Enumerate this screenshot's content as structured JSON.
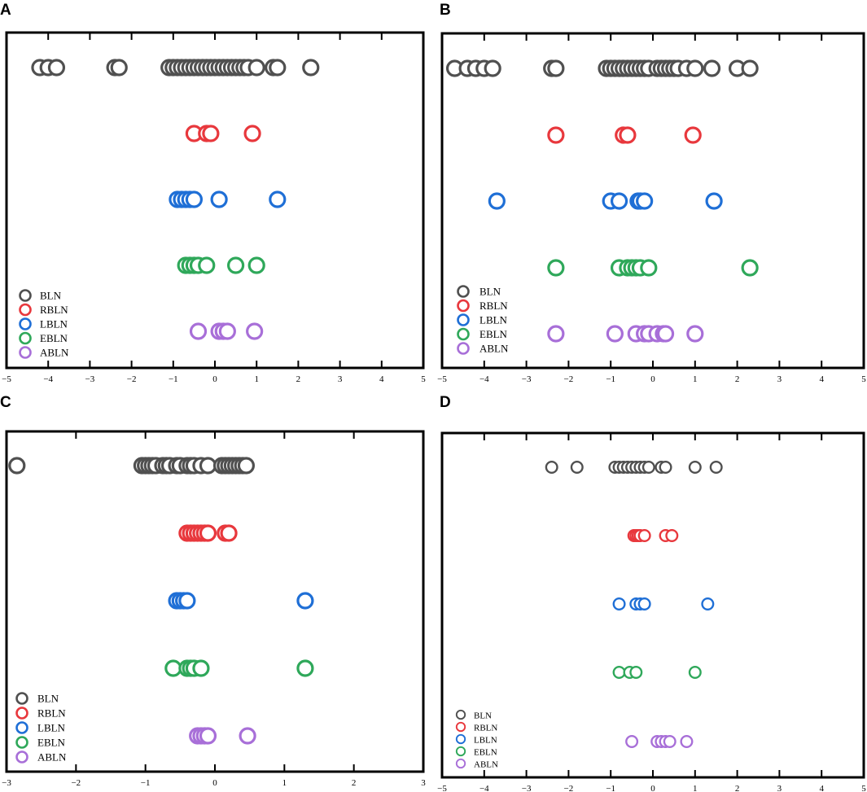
{
  "colors": {
    "BLN": "#505050",
    "RBLN": "#e8383d",
    "LBLN": "#1f6fd6",
    "EBLN": "#2fa85a",
    "ABLN": "#a86fd8",
    "frame": "#000000"
  },
  "chart_data": [
    {
      "panel_label": "A",
      "type": "scatter",
      "xlim": [
        -5,
        5
      ],
      "xticks": [
        "−5",
        "−4",
        "−3",
        "−2",
        "−1",
        "0",
        "1",
        "2",
        "3",
        "4",
        "5"
      ],
      "grid": false,
      "legend_position": "bottom-left",
      "series": [
        {
          "name": "BLN",
          "x": [
            -4.2,
            -4.0,
            -3.8,
            -2.4,
            -2.3,
            -1.1,
            -1.0,
            -0.9,
            -0.8,
            -0.7,
            -0.6,
            -0.5,
            -0.4,
            -0.3,
            -0.2,
            -0.1,
            0.0,
            0.1,
            0.2,
            0.3,
            0.4,
            0.5,
            0.6,
            0.7,
            0.8,
            1.0,
            1.4,
            1.5,
            2.3
          ]
        },
        {
          "name": "RBLN",
          "x": [
            -0.5,
            -0.2,
            -0.1,
            0.9
          ]
        },
        {
          "name": "LBLN",
          "x": [
            -0.9,
            -0.8,
            -0.7,
            -0.6,
            -0.5,
            0.1,
            1.5
          ]
        },
        {
          "name": "EBLN",
          "x": [
            -0.7,
            -0.6,
            -0.5,
            -0.4,
            -0.2,
            0.5,
            1.0
          ]
        },
        {
          "name": "ABLN",
          "x": [
            -0.4,
            0.1,
            0.2,
            0.3,
            0.95
          ]
        }
      ]
    },
    {
      "panel_label": "B",
      "type": "scatter",
      "xlim": [
        -5,
        5
      ],
      "xticks": [
        "−5",
        "−4",
        "−3",
        "−2",
        "−1",
        "0",
        "1",
        "2",
        "3",
        "4",
        "5"
      ],
      "grid": false,
      "legend_position": "bottom-left",
      "series": [
        {
          "name": "BLN",
          "x": [
            -4.7,
            -4.4,
            -4.2,
            -4.0,
            -3.8,
            -2.4,
            -2.3,
            -1.1,
            -1.0,
            -0.9,
            -0.8,
            -0.7,
            -0.6,
            -0.5,
            -0.4,
            -0.3,
            -0.2,
            -0.1,
            0.1,
            0.2,
            0.3,
            0.4,
            0.5,
            0.6,
            0.8,
            1.0,
            1.4,
            2.0,
            2.3
          ]
        },
        {
          "name": "RBLN",
          "x": [
            -2.3,
            -0.7,
            -0.6,
            0.95
          ]
        },
        {
          "name": "LBLN",
          "x": [
            -3.7,
            -1.0,
            -0.8,
            -0.35,
            -0.3,
            -0.2,
            1.45
          ]
        },
        {
          "name": "EBLN",
          "x": [
            -2.3,
            -0.8,
            -0.6,
            -0.5,
            -0.4,
            -0.3,
            -0.1,
            2.3
          ]
        },
        {
          "name": "ABLN",
          "x": [
            -2.3,
            -0.9,
            -0.4,
            -0.2,
            -0.1,
            0.1,
            0.25,
            0.3,
            1.0
          ]
        }
      ]
    },
    {
      "panel_label": "C",
      "type": "scatter",
      "xlim": [
        -3,
        3
      ],
      "xticks": [
        "−3",
        "−2",
        "−1",
        "0",
        "1",
        "2",
        "3"
      ],
      "grid": false,
      "legend_position": "bottom-left",
      "series": [
        {
          "name": "BLN",
          "x": [
            -2.85,
            -1.05,
            -1.0,
            -0.95,
            -0.9,
            -0.85,
            -0.75,
            -0.7,
            -0.65,
            -0.55,
            -0.5,
            -0.4,
            -0.35,
            -0.3,
            -0.2,
            -0.1,
            0.1,
            0.15,
            0.2,
            0.25,
            0.3,
            0.35,
            0.4,
            0.45
          ]
        },
        {
          "name": "RBLN",
          "x": [
            -0.4,
            -0.35,
            -0.3,
            -0.25,
            -0.2,
            -0.15,
            -0.1,
            0.15,
            0.2
          ]
        },
        {
          "name": "LBLN",
          "x": [
            -0.55,
            -0.5,
            -0.45,
            -0.4,
            1.3
          ]
        },
        {
          "name": "EBLN",
          "x": [
            -0.6,
            -0.4,
            -0.35,
            -0.3,
            -0.2,
            1.3
          ]
        },
        {
          "name": "ABLN",
          "x": [
            -0.25,
            -0.2,
            -0.15,
            -0.1,
            0.47
          ]
        }
      ]
    },
    {
      "panel_label": "D",
      "type": "scatter",
      "xlim": [
        -5,
        5
      ],
      "xticks": [
        "−5",
        "−4",
        "−3",
        "−2",
        "−1",
        "0",
        "1",
        "2",
        "3",
        "4",
        "5"
      ],
      "grid": false,
      "legend_position": "bottom-left",
      "series": [
        {
          "name": "BLN",
          "x": [
            -2.4,
            -1.8,
            -0.9,
            -0.8,
            -0.7,
            -0.6,
            -0.5,
            -0.4,
            -0.3,
            -0.2,
            -0.1,
            0.2,
            0.3,
            1.0,
            1.5
          ]
        },
        {
          "name": "RBLN",
          "x": [
            -0.45,
            -0.4,
            -0.35,
            -0.3,
            -0.2,
            0.3,
            0.45
          ]
        },
        {
          "name": "LBLN",
          "x": [
            -0.8,
            -0.4,
            -0.3,
            -0.2,
            1.3
          ]
        },
        {
          "name": "EBLN",
          "x": [
            -0.8,
            -0.55,
            -0.4,
            1.0
          ]
        },
        {
          "name": "ABLN",
          "x": [
            -0.5,
            0.1,
            0.2,
            0.3,
            0.4,
            0.8
          ]
        }
      ]
    }
  ]
}
